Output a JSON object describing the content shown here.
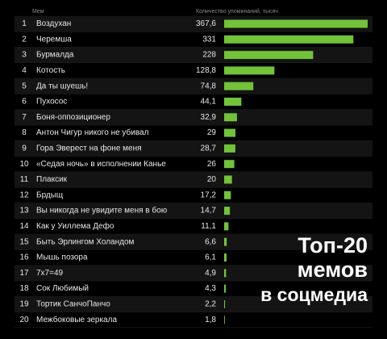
{
  "chart_data": {
    "type": "bar",
    "header_name": "Мем",
    "header_value": "Количество упоминаний, тысяч",
    "title_lines": [
      "Топ-20",
      "мемов",
      "в соцмедиа"
    ],
    "ranks": [
      1,
      2,
      3,
      4,
      5,
      6,
      7,
      8,
      9,
      10,
      11,
      12,
      13,
      14,
      15,
      16,
      17,
      18,
      19,
      20
    ],
    "categories": [
      "Воздухан",
      "Черемша",
      "Бурмалда",
      "Котость",
      "Да ты шуешь!",
      "Пухосос",
      "Боня-оппозиционер",
      "Антон Чигур никого не убивал",
      "Гора Эверест на фоне меня",
      "«Седая ночь» в исполнении Канье",
      "Плаксик",
      "Брдыщ",
      "Вы никогда не увидите меня в бою",
      "Как у Уиллема Дефо",
      "Быть Эрлингом Холандом",
      "Мышь позора",
      "7x7=49",
      "Сок Любимый",
      "Тортик СанчоПанчо",
      "Межбоковые зеркала"
    ],
    "values": [
      367.6,
      331,
      228,
      128.8,
      74.8,
      44.1,
      32.9,
      29,
      28.7,
      26,
      20,
      17.2,
      14.7,
      11.1,
      6.6,
      6.1,
      4.9,
      4.3,
      2.2,
      1.8
    ],
    "value_labels": [
      "367,6",
      "331",
      "228",
      "128,8",
      "74,8",
      "44,1",
      "32,9",
      "29",
      "28,7",
      "26",
      "20",
      "17,2",
      "14,7",
      "11,1",
      "6,6",
      "6,1",
      "4,9",
      "4,3",
      "2,2",
      "1,8"
    ],
    "color": "#72c23a"
  }
}
